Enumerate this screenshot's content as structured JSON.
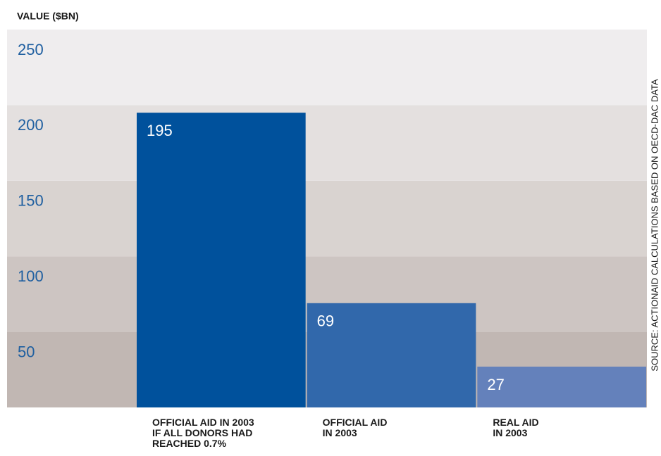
{
  "chart_data": {
    "type": "bar",
    "y_axis_label": "VALUE ($BN)",
    "source": "SOURCE: ACTIONAID CALCULATIONS BASED ON OECD-DAC DATA",
    "categories": [
      "OFFICIAL AID IN 2003\nIF ALL DONORS HAD\nREACHED 0.7%",
      "OFFICIAL AID\nIN 2003",
      "REAL AID\nIN 2003"
    ],
    "values": [
      195,
      69,
      27
    ],
    "colors": [
      "#00519c",
      "#3168ab",
      "#6481bb"
    ],
    "ylim": [
      0,
      250
    ],
    "yticks": [
      50,
      100,
      150,
      200,
      250
    ],
    "band_colors": [
      "#c1b7b3",
      "#cdc5c2",
      "#d9d3d0",
      "#e4e0df",
      "#efedee"
    ]
  }
}
